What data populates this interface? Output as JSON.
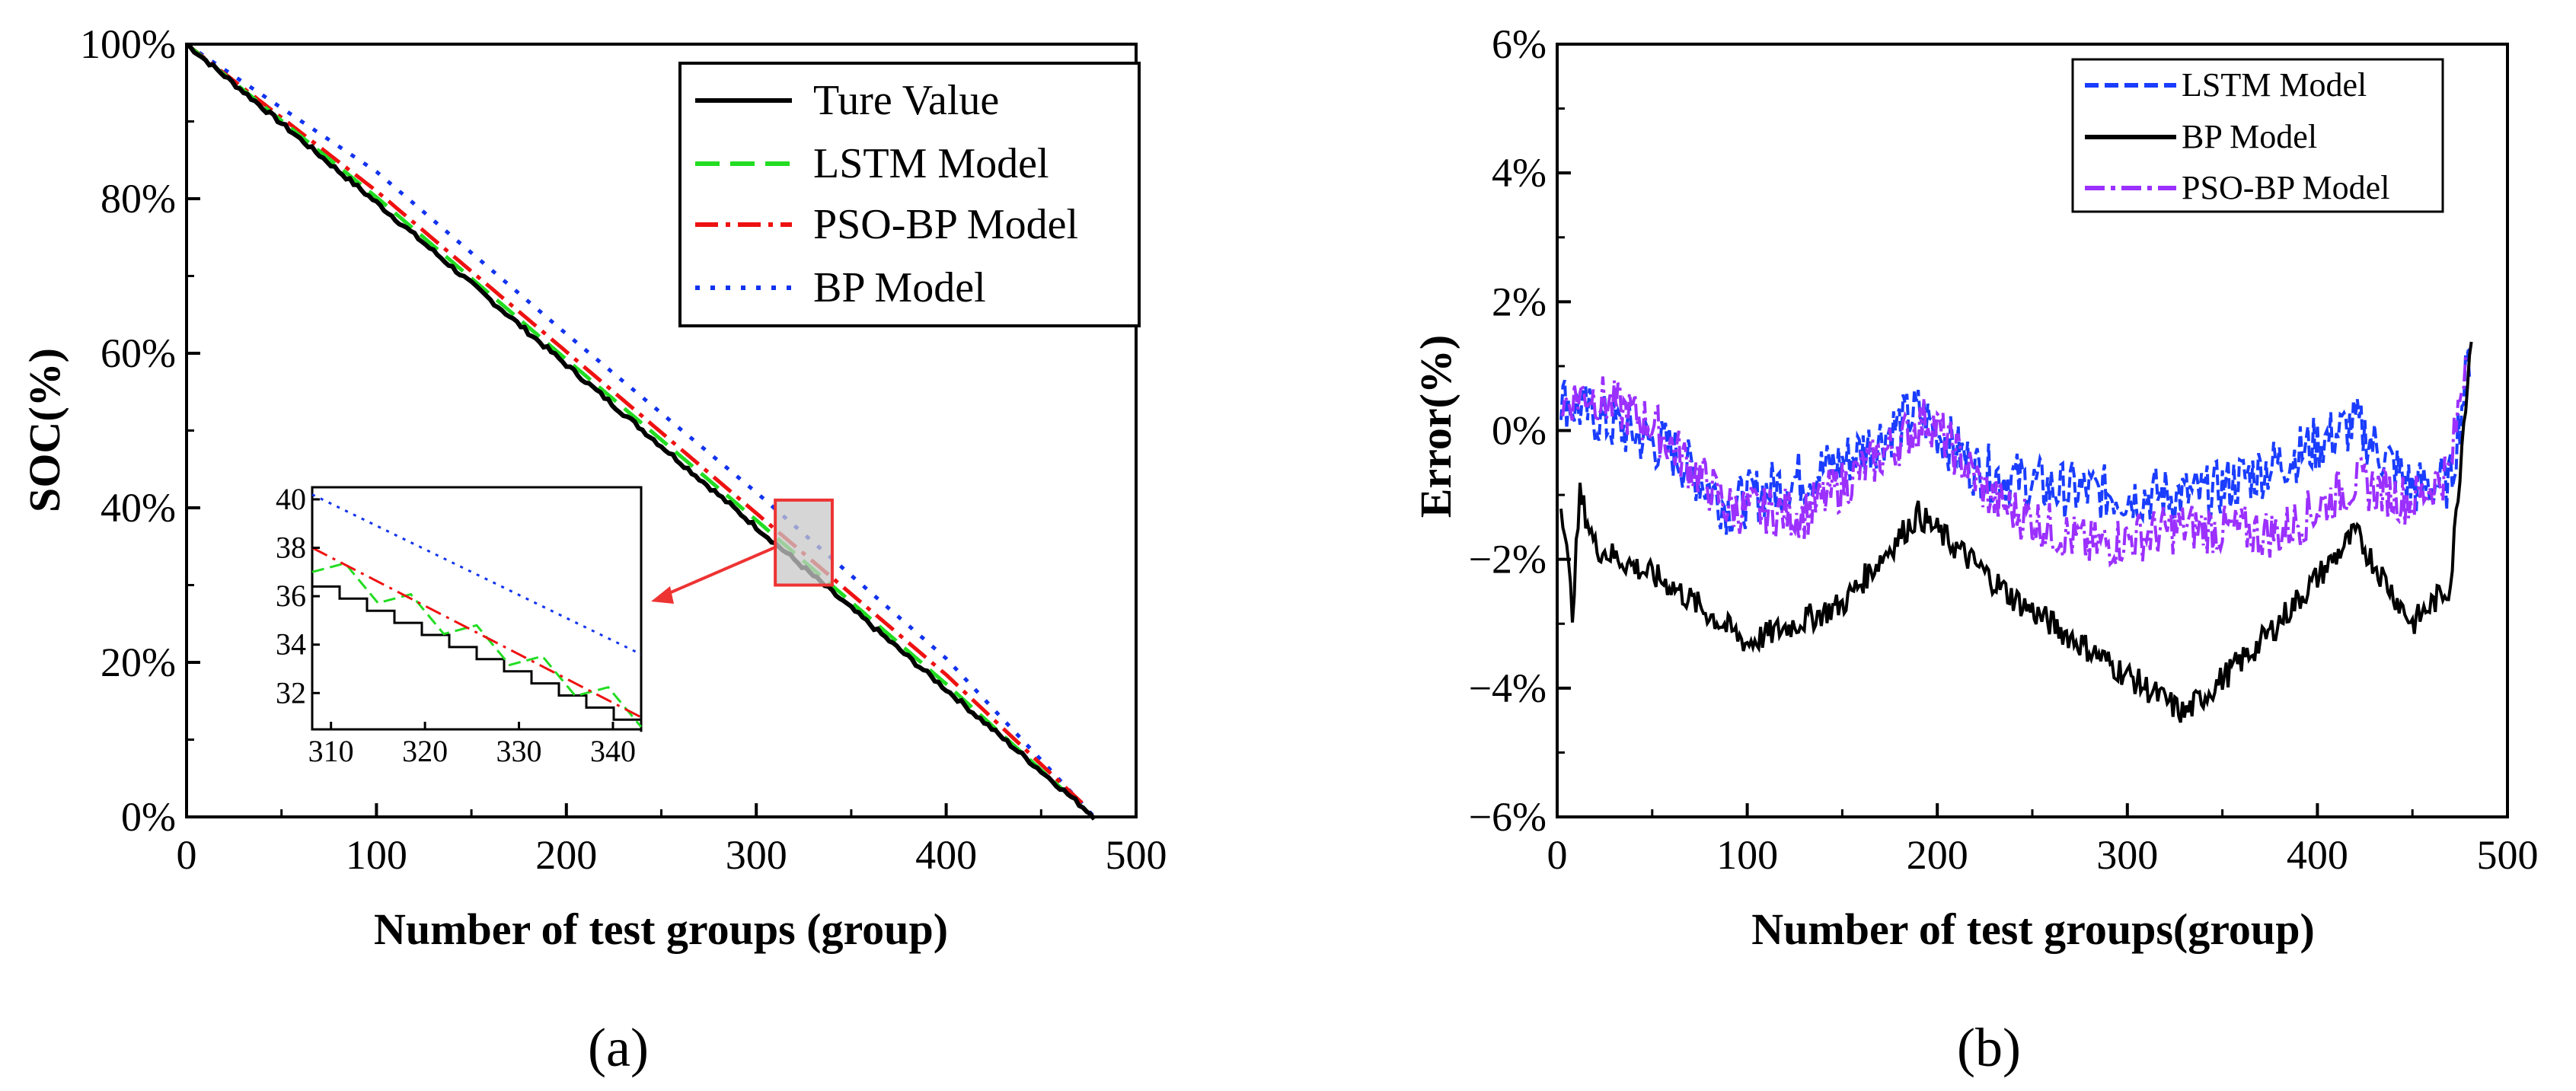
{
  "colors": {
    "true": "#000000",
    "lstm": "#22dd22",
    "psobp": "#ee1111",
    "bp": "#1133ee",
    "err_lstm": "#1a3dff",
    "err_bp": "#000000",
    "err_psobp": "#9b30ff",
    "zoom": "#ee3333"
  },
  "panels": [
    {
      "id": "a",
      "label": "(a)"
    },
    {
      "id": "b",
      "label": "(b)"
    }
  ],
  "chart_data": [
    {
      "type": "line",
      "panel": "a",
      "title": "",
      "xlabel": "Number of test groups (group)",
      "ylabel": "SOC(%)",
      "xlim": [
        0,
        500
      ],
      "ylim": [
        0,
        100
      ],
      "xticks": [
        0,
        100,
        200,
        300,
        400,
        500
      ],
      "xtick_labels": [
        "0",
        "100",
        "200",
        "300",
        "400",
        "500"
      ],
      "yticks": [
        0,
        20,
        40,
        60,
        80,
        100
      ],
      "ytick_labels": [
        "0%",
        "20%",
        "40%",
        "60%",
        "80%",
        "100%"
      ],
      "legend": [
        "Ture Value",
        "LSTM Model",
        "PSO-BP Model",
        "BP Model"
      ],
      "legend_position": "top-right",
      "series": [
        {
          "name": "Ture Value",
          "style": "solid",
          "x": [
            0,
            100,
            200,
            300,
            400,
            478
          ],
          "values": [
            100,
            79.5,
            58.5,
            37.5,
            16.5,
            0
          ]
        },
        {
          "name": "LSTM Model",
          "style": "dashed",
          "x": [
            0,
            100,
            200,
            300,
            400,
            475
          ],
          "values": [
            100,
            80.2,
            59.2,
            38.4,
            17.2,
            0.5
          ]
        },
        {
          "name": "PSO-BP Model",
          "style": "dashdot",
          "x": [
            0,
            100,
            200,
            300,
            400,
            475
          ],
          "values": [
            100,
            81,
            60.2,
            39.3,
            18.4,
            1
          ]
        },
        {
          "name": "BP Model",
          "style": "dotted",
          "x": [
            0,
            100,
            200,
            300,
            400,
            478
          ],
          "values": [
            100,
            83.5,
            62.5,
            42,
            20.5,
            0
          ]
        }
      ],
      "zoom_box": {
        "x": [
          310,
          340
        ],
        "y": [
          30,
          41
        ]
      },
      "inset": {
        "xlim": [
          308,
          343
        ],
        "ylim": [
          30.5,
          40.5
        ],
        "xticks": [
          310,
          320,
          330,
          340
        ],
        "xtick_labels": [
          "310",
          "320",
          "330",
          "340"
        ],
        "yticks": [
          32,
          34,
          36,
          38,
          40
        ],
        "ytick_labels": [
          "32",
          "34",
          "36",
          "38",
          "40"
        ],
        "series": [
          {
            "name": "Ture Value",
            "x": [
              308,
              343
            ],
            "values": [
              36.4,
              30.4
            ],
            "style": "steps"
          },
          {
            "name": "LSTM Model",
            "x": [
              308,
              343
            ],
            "values": [
              37.2,
              30.8
            ],
            "style": "zigzag"
          },
          {
            "name": "PSO-BP Model",
            "x": [
              308,
              343
            ],
            "values": [
              38.0,
              31.0
            ],
            "style": "dashdot"
          },
          {
            "name": "BP Model",
            "x": [
              308,
              343
            ],
            "values": [
              40.2,
              33.6
            ],
            "style": "dotted"
          }
        ]
      }
    },
    {
      "type": "line",
      "panel": "b",
      "title": "",
      "xlabel": "Number of test groups(group)",
      "ylabel": "Error(%)",
      "xlim": [
        0,
        500
      ],
      "ylim": [
        -6,
        6
      ],
      "xticks": [
        0,
        100,
        200,
        300,
        400,
        500
      ],
      "xtick_labels": [
        "0",
        "100",
        "200",
        "300",
        "400",
        "500"
      ],
      "yticks": [
        -6,
        -4,
        -2,
        0,
        2,
        4,
        6
      ],
      "ytick_labels": [
        "−6%",
        "−4%",
        "−2%",
        "0%",
        "2%",
        "4%",
        "6%"
      ],
      "legend": [
        "LSTM Model",
        "BP Model",
        "PSO-BP Model"
      ],
      "legend_position": "top-right",
      "series": [
        {
          "name": "LSTM Model",
          "style": "dashed",
          "noise": 0.45,
          "x": [
            2,
            20,
            60,
            90,
            120,
            150,
            190,
            220,
            260,
            300,
            340,
            380,
            420,
            450,
            470,
            480
          ],
          "values": [
            0.5,
            0.2,
            -0.3,
            -1.2,
            -0.8,
            -0.5,
            0.3,
            -0.6,
            -0.9,
            -1.0,
            -1.0,
            -0.5,
            0.1,
            -0.9,
            -0.8,
            1.2
          ]
        },
        {
          "name": "BP Model",
          "style": "solid",
          "noise": 0.22,
          "x": [
            2,
            8,
            12,
            20,
            60,
            100,
            150,
            190,
            240,
            290,
            330,
            370,
            420,
            450,
            470,
            478,
            481
          ],
          "values": [
            -1.0,
            -2.8,
            -1.0,
            -1.8,
            -2.4,
            -3.3,
            -2.7,
            -1.3,
            -2.6,
            -3.6,
            -4.4,
            -3.3,
            -1.6,
            -3.0,
            -2.4,
            0.5,
            1.5
          ]
        },
        {
          "name": "PSO-BP Model",
          "style": "dashdot",
          "noise": 0.4,
          "x": [
            2,
            15,
            50,
            90,
            130,
            170,
            195,
            230,
            280,
            330,
            380,
            420,
            450,
            470,
            478
          ],
          "values": [
            0.4,
            0.6,
            0.1,
            -1.2,
            -1.3,
            -0.4,
            0.2,
            -1.1,
            -1.8,
            -1.5,
            -1.6,
            -0.8,
            -1.1,
            -0.6,
            1.2
          ]
        }
      ]
    }
  ]
}
